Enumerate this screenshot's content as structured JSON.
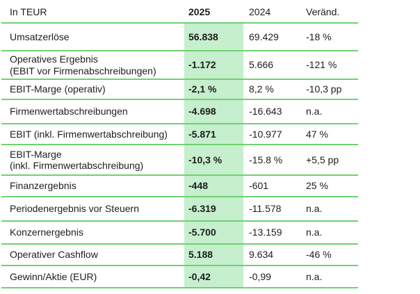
{
  "table": {
    "colors": {
      "highlight_fill": "#c6efce",
      "line": "#6ed26e",
      "text": "#1d1d1d"
    },
    "header": {
      "unit_label": "In TEUR",
      "c2025": "2025",
      "c2024": "2024",
      "change": "Veränd."
    },
    "rows": [
      {
        "label": "Umsatzerlöse",
        "v2025": "56.838",
        "v2024": "69.429",
        "change": "-18 %"
      },
      {
        "label": "Operatives Ergebnis\n(EBIT vor Firmenabschreibungen)",
        "v2025": "-1.172",
        "v2024": "5.666",
        "change": "-121 %"
      },
      {
        "label": "EBIT-Marge (operativ)",
        "v2025": "-2,1 %",
        "v2024": "8,2 %",
        "change": "-10,3 pp"
      },
      {
        "label": "Firmenwertabschreibungen",
        "v2025": "-4.698",
        "v2024": "-16.643",
        "change": "n.a."
      },
      {
        "label": "EBIT (inkl. Firmenwertabschreibung)",
        "v2025": "-5.871",
        "v2024": "-10.977",
        "change": "47 %"
      },
      {
        "label": "EBIT-Marge\n(inkl. Firmenwertabschreibung)",
        "v2025": "-10,3 %",
        "v2024": "-15.8 %",
        "change": "+5,5 pp"
      },
      {
        "label": "Finanzergebnis",
        "v2025": "-448",
        "v2024": "-601",
        "change": "25 %"
      },
      {
        "label": "Periodenergebnis vor Steuern",
        "v2025": "-6.319",
        "v2024": "-11.578",
        "change": "n.a."
      },
      {
        "label": "Konzernergebnis",
        "v2025": "-5.700",
        "v2024": "-13.159",
        "change": "n.a."
      },
      {
        "label": "Operativer Cashflow",
        "v2025": "5.188",
        "v2024": "9.634",
        "change": "-46 %"
      },
      {
        "label": "Gewinn/Aktie (EUR)",
        "v2025": "-0,42",
        "v2024": "-0,99",
        "change": "n.a."
      }
    ]
  },
  "chart_data": {
    "type": "table",
    "columns": [
      "In TEUR",
      "2025",
      "2024",
      "Veränd."
    ],
    "rows": [
      [
        "Umsatzerlöse",
        "56.838",
        "69.429",
        "-18 %"
      ],
      [
        "Operatives Ergebnis (EBIT vor Firmenabschreibungen)",
        "-1.172",
        "5.666",
        "-121 %"
      ],
      [
        "EBIT-Marge (operativ)",
        "-2,1 %",
        "8,2 %",
        "-10,3 pp"
      ],
      [
        "Firmenwertabschreibungen",
        "-4.698",
        "-16.643",
        "n.a."
      ],
      [
        "EBIT (inkl. Firmenwertabschreibung)",
        "-5.871",
        "-10.977",
        "47 %"
      ],
      [
        "EBIT-Marge (inkl. Firmenwertabschreibung)",
        "-10,3 %",
        "-15.8 %",
        "+5,5 pp"
      ],
      [
        "Finanzergebnis",
        "-448",
        "-601",
        "25 %"
      ],
      [
        "Periodenergebnis vor Steuern",
        "-6.319",
        "-11.578",
        "n.a."
      ],
      [
        "Konzernergebnis",
        "-5.700",
        "-13.159",
        "n.a."
      ],
      [
        "Operativer Cashflow",
        "5.188",
        "9.634",
        "-46 %"
      ],
      [
        "Gewinn/Aktie (EUR)",
        "-0,42",
        "-0,99",
        "n.a."
      ]
    ],
    "layout_hints": {
      "highlighted_column": "2025",
      "grid": "horizontal-rules-only"
    }
  }
}
